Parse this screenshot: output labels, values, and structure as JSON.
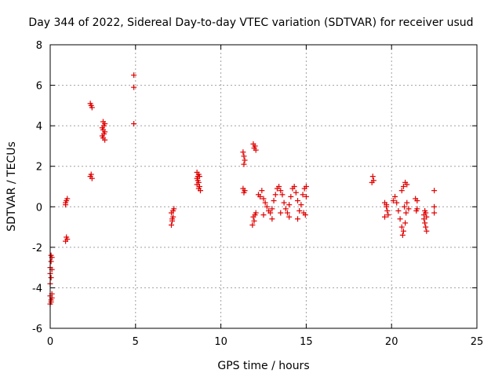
{
  "chart_data": {
    "type": "scatter",
    "title": "Day 344 of 2022, Sidereal Day-to-day VTEC variation (SDTVAR) for receiver usud",
    "xlabel": "GPS time / hours",
    "ylabel": "SDTVAR / TECUs",
    "xlim": [
      0,
      25
    ],
    "ylim": [
      -6,
      8
    ],
    "xticks": [
      0,
      5,
      10,
      15,
      20,
      25
    ],
    "yticks": [
      -6,
      -4,
      -2,
      0,
      2,
      4,
      6,
      8
    ],
    "xtick_labels": [
      "0",
      "5",
      "10",
      "15",
      "20",
      "25"
    ],
    "ytick_labels": [
      "-6",
      "-4",
      "-2",
      "0",
      "2",
      "4",
      "6",
      "8"
    ],
    "grid": true,
    "marker": "+",
    "color": "#e00000",
    "series": [
      {
        "name": "SDTVAR",
        "points": [
          [
            0.0,
            -4.8
          ],
          [
            0.05,
            -4.6
          ],
          [
            0.1,
            -4.5
          ],
          [
            0.0,
            -4.4
          ],
          [
            0.1,
            -4.3
          ],
          [
            0.05,
            -4.7
          ],
          [
            0.0,
            -3.8
          ],
          [
            0.05,
            -3.5
          ],
          [
            0.0,
            -3.3
          ],
          [
            0.1,
            -3.1
          ],
          [
            0.0,
            -3.0
          ],
          [
            0.05,
            -2.7
          ],
          [
            0.1,
            -2.5
          ],
          [
            0.05,
            -2.4
          ],
          [
            0.9,
            0.2
          ],
          [
            0.95,
            0.3
          ],
          [
            1.0,
            0.4
          ],
          [
            0.9,
            0.1
          ],
          [
            0.95,
            -1.5
          ],
          [
            1.0,
            -1.6
          ],
          [
            0.9,
            -1.7
          ],
          [
            2.35,
            5.1
          ],
          [
            2.4,
            5.0
          ],
          [
            2.45,
            4.9
          ],
          [
            2.4,
            1.6
          ],
          [
            2.35,
            1.5
          ],
          [
            2.45,
            1.4
          ],
          [
            3.1,
            4.2
          ],
          [
            3.2,
            4.1
          ],
          [
            3.15,
            4.0
          ],
          [
            3.05,
            3.9
          ],
          [
            3.1,
            3.8
          ],
          [
            3.2,
            3.7
          ],
          [
            3.15,
            3.6
          ],
          [
            3.05,
            3.5
          ],
          [
            3.1,
            3.4
          ],
          [
            3.2,
            3.3
          ],
          [
            4.9,
            6.5
          ],
          [
            4.9,
            5.9
          ],
          [
            4.9,
            4.1
          ],
          [
            7.1,
            -0.9
          ],
          [
            7.15,
            -0.7
          ],
          [
            7.2,
            -0.5
          ],
          [
            7.1,
            -0.3
          ],
          [
            7.25,
            -0.1
          ],
          [
            7.15,
            -0.6
          ],
          [
            7.2,
            -0.2
          ],
          [
            8.6,
            1.7
          ],
          [
            8.7,
            1.6
          ],
          [
            8.75,
            1.5
          ],
          [
            8.6,
            1.4
          ],
          [
            8.65,
            1.3
          ],
          [
            8.7,
            1.2
          ],
          [
            8.6,
            1.1
          ],
          [
            8.75,
            1.0
          ],
          [
            8.7,
            0.9
          ],
          [
            8.8,
            0.8
          ],
          [
            8.65,
            1.5
          ],
          [
            11.3,
            2.7
          ],
          [
            11.35,
            2.5
          ],
          [
            11.4,
            2.3
          ],
          [
            11.35,
            2.1
          ],
          [
            11.3,
            0.9
          ],
          [
            11.4,
            0.8
          ],
          [
            11.35,
            0.7
          ],
          [
            11.9,
            3.1
          ],
          [
            12.0,
            3.0
          ],
          [
            11.95,
            2.9
          ],
          [
            12.05,
            2.8
          ],
          [
            11.9,
            -0.5
          ],
          [
            12.0,
            -0.4
          ],
          [
            11.95,
            -0.7
          ],
          [
            11.85,
            -0.9
          ],
          [
            12.05,
            -0.3
          ],
          [
            12.2,
            0.6
          ],
          [
            12.3,
            0.5
          ],
          [
            12.4,
            0.8
          ],
          [
            12.5,
            0.4
          ],
          [
            12.6,
            0.2
          ],
          [
            12.7,
            0.0
          ],
          [
            12.8,
            -0.2
          ],
          [
            12.9,
            -0.3
          ],
          [
            13.0,
            -0.1
          ],
          [
            13.1,
            0.3
          ],
          [
            13.2,
            0.6
          ],
          [
            13.3,
            0.9
          ],
          [
            13.4,
            1.0
          ],
          [
            13.5,
            0.8
          ],
          [
            13.6,
            0.6
          ],
          [
            13.7,
            0.2
          ],
          [
            13.8,
            -0.1
          ],
          [
            13.9,
            -0.3
          ],
          [
            14.0,
            0.1
          ],
          [
            14.1,
            0.5
          ],
          [
            14.2,
            0.9
          ],
          [
            14.3,
            1.0
          ],
          [
            14.4,
            0.7
          ],
          [
            14.5,
            0.3
          ],
          [
            14.6,
            -0.2
          ],
          [
            14.7,
            0.1
          ],
          [
            14.8,
            0.6
          ],
          [
            14.9,
            0.9
          ],
          [
            15.0,
            1.0
          ],
          [
            14.85,
            -0.3
          ],
          [
            14.95,
            -0.4
          ],
          [
            15.0,
            0.5
          ],
          [
            12.5,
            -0.4
          ],
          [
            13.0,
            -0.6
          ],
          [
            13.5,
            -0.3
          ],
          [
            14.0,
            -0.5
          ],
          [
            14.5,
            -0.6
          ],
          [
            18.9,
            1.5
          ],
          [
            18.95,
            1.3
          ],
          [
            18.85,
            1.2
          ],
          [
            19.6,
            0.2
          ],
          [
            19.7,
            0.0
          ],
          [
            19.75,
            -0.2
          ],
          [
            19.8,
            -0.4
          ],
          [
            19.6,
            -0.5
          ],
          [
            19.7,
            0.1
          ],
          [
            20.1,
            0.3
          ],
          [
            20.2,
            0.5
          ],
          [
            20.3,
            0.2
          ],
          [
            20.4,
            -0.2
          ],
          [
            20.5,
            -0.6
          ],
          [
            20.6,
            -1.0
          ],
          [
            20.65,
            -1.4
          ],
          [
            20.7,
            -1.2
          ],
          [
            20.8,
            -0.8
          ],
          [
            20.6,
            0.8
          ],
          [
            20.7,
            1.0
          ],
          [
            20.8,
            1.2
          ],
          [
            20.9,
            1.1
          ],
          [
            20.75,
            0.0
          ],
          [
            20.85,
            -0.3
          ],
          [
            20.9,
            0.2
          ],
          [
            21.0,
            -0.1
          ],
          [
            21.4,
            0.4
          ],
          [
            21.5,
            0.3
          ],
          [
            21.45,
            -0.2
          ],
          [
            21.5,
            -0.1
          ],
          [
            21.9,
            -0.4
          ],
          [
            21.95,
            -0.8
          ],
          [
            22.0,
            -1.0
          ],
          [
            22.05,
            -1.2
          ],
          [
            21.9,
            -0.6
          ],
          [
            22.0,
            -0.3
          ],
          [
            22.05,
            -0.5
          ],
          [
            21.95,
            -0.2
          ],
          [
            22.5,
            0.8
          ],
          [
            22.5,
            0.0
          ],
          [
            22.5,
            -0.3
          ]
        ]
      }
    ]
  }
}
